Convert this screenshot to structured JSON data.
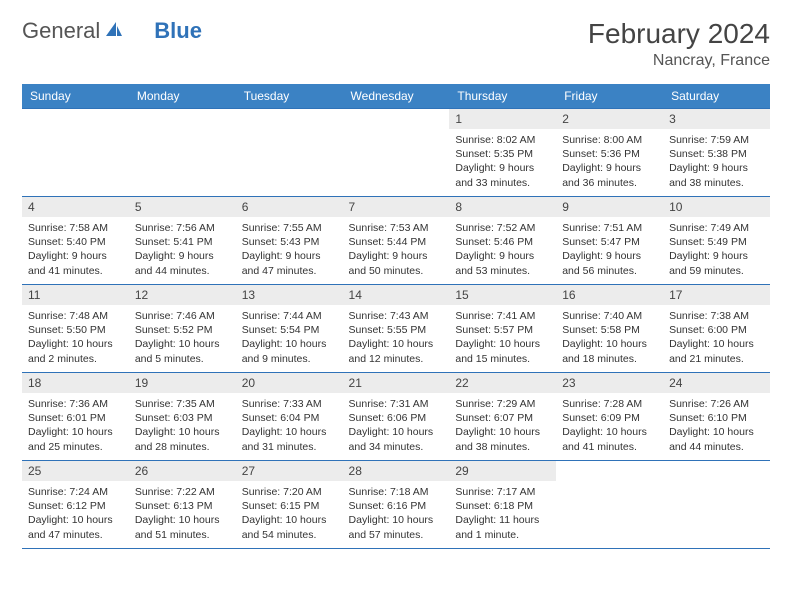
{
  "brand": {
    "name_a": "General",
    "name_b": "Blue"
  },
  "title": "February 2024",
  "location": "Nancray, France",
  "colors": {
    "header_bg": "#3b82c4",
    "border": "#2f72b8",
    "daynum_bg": "#ececec",
    "text": "#333333"
  },
  "day_headers": [
    "Sunday",
    "Monday",
    "Tuesday",
    "Wednesday",
    "Thursday",
    "Friday",
    "Saturday"
  ],
  "weeks": [
    [
      {
        "n": "",
        "sr": "",
        "ss": "",
        "dl": ""
      },
      {
        "n": "",
        "sr": "",
        "ss": "",
        "dl": ""
      },
      {
        "n": "",
        "sr": "",
        "ss": "",
        "dl": ""
      },
      {
        "n": "",
        "sr": "",
        "ss": "",
        "dl": ""
      },
      {
        "n": "1",
        "sr": "Sunrise: 8:02 AM",
        "ss": "Sunset: 5:35 PM",
        "dl": "Daylight: 9 hours and 33 minutes."
      },
      {
        "n": "2",
        "sr": "Sunrise: 8:00 AM",
        "ss": "Sunset: 5:36 PM",
        "dl": "Daylight: 9 hours and 36 minutes."
      },
      {
        "n": "3",
        "sr": "Sunrise: 7:59 AM",
        "ss": "Sunset: 5:38 PM",
        "dl": "Daylight: 9 hours and 38 minutes."
      }
    ],
    [
      {
        "n": "4",
        "sr": "Sunrise: 7:58 AM",
        "ss": "Sunset: 5:40 PM",
        "dl": "Daylight: 9 hours and 41 minutes."
      },
      {
        "n": "5",
        "sr": "Sunrise: 7:56 AM",
        "ss": "Sunset: 5:41 PM",
        "dl": "Daylight: 9 hours and 44 minutes."
      },
      {
        "n": "6",
        "sr": "Sunrise: 7:55 AM",
        "ss": "Sunset: 5:43 PM",
        "dl": "Daylight: 9 hours and 47 minutes."
      },
      {
        "n": "7",
        "sr": "Sunrise: 7:53 AM",
        "ss": "Sunset: 5:44 PM",
        "dl": "Daylight: 9 hours and 50 minutes."
      },
      {
        "n": "8",
        "sr": "Sunrise: 7:52 AM",
        "ss": "Sunset: 5:46 PM",
        "dl": "Daylight: 9 hours and 53 minutes."
      },
      {
        "n": "9",
        "sr": "Sunrise: 7:51 AM",
        "ss": "Sunset: 5:47 PM",
        "dl": "Daylight: 9 hours and 56 minutes."
      },
      {
        "n": "10",
        "sr": "Sunrise: 7:49 AM",
        "ss": "Sunset: 5:49 PM",
        "dl": "Daylight: 9 hours and 59 minutes."
      }
    ],
    [
      {
        "n": "11",
        "sr": "Sunrise: 7:48 AM",
        "ss": "Sunset: 5:50 PM",
        "dl": "Daylight: 10 hours and 2 minutes."
      },
      {
        "n": "12",
        "sr": "Sunrise: 7:46 AM",
        "ss": "Sunset: 5:52 PM",
        "dl": "Daylight: 10 hours and 5 minutes."
      },
      {
        "n": "13",
        "sr": "Sunrise: 7:44 AM",
        "ss": "Sunset: 5:54 PM",
        "dl": "Daylight: 10 hours and 9 minutes."
      },
      {
        "n": "14",
        "sr": "Sunrise: 7:43 AM",
        "ss": "Sunset: 5:55 PM",
        "dl": "Daylight: 10 hours and 12 minutes."
      },
      {
        "n": "15",
        "sr": "Sunrise: 7:41 AM",
        "ss": "Sunset: 5:57 PM",
        "dl": "Daylight: 10 hours and 15 minutes."
      },
      {
        "n": "16",
        "sr": "Sunrise: 7:40 AM",
        "ss": "Sunset: 5:58 PM",
        "dl": "Daylight: 10 hours and 18 minutes."
      },
      {
        "n": "17",
        "sr": "Sunrise: 7:38 AM",
        "ss": "Sunset: 6:00 PM",
        "dl": "Daylight: 10 hours and 21 minutes."
      }
    ],
    [
      {
        "n": "18",
        "sr": "Sunrise: 7:36 AM",
        "ss": "Sunset: 6:01 PM",
        "dl": "Daylight: 10 hours and 25 minutes."
      },
      {
        "n": "19",
        "sr": "Sunrise: 7:35 AM",
        "ss": "Sunset: 6:03 PM",
        "dl": "Daylight: 10 hours and 28 minutes."
      },
      {
        "n": "20",
        "sr": "Sunrise: 7:33 AM",
        "ss": "Sunset: 6:04 PM",
        "dl": "Daylight: 10 hours and 31 minutes."
      },
      {
        "n": "21",
        "sr": "Sunrise: 7:31 AM",
        "ss": "Sunset: 6:06 PM",
        "dl": "Daylight: 10 hours and 34 minutes."
      },
      {
        "n": "22",
        "sr": "Sunrise: 7:29 AM",
        "ss": "Sunset: 6:07 PM",
        "dl": "Daylight: 10 hours and 38 minutes."
      },
      {
        "n": "23",
        "sr": "Sunrise: 7:28 AM",
        "ss": "Sunset: 6:09 PM",
        "dl": "Daylight: 10 hours and 41 minutes."
      },
      {
        "n": "24",
        "sr": "Sunrise: 7:26 AM",
        "ss": "Sunset: 6:10 PM",
        "dl": "Daylight: 10 hours and 44 minutes."
      }
    ],
    [
      {
        "n": "25",
        "sr": "Sunrise: 7:24 AM",
        "ss": "Sunset: 6:12 PM",
        "dl": "Daylight: 10 hours and 47 minutes."
      },
      {
        "n": "26",
        "sr": "Sunrise: 7:22 AM",
        "ss": "Sunset: 6:13 PM",
        "dl": "Daylight: 10 hours and 51 minutes."
      },
      {
        "n": "27",
        "sr": "Sunrise: 7:20 AM",
        "ss": "Sunset: 6:15 PM",
        "dl": "Daylight: 10 hours and 54 minutes."
      },
      {
        "n": "28",
        "sr": "Sunrise: 7:18 AM",
        "ss": "Sunset: 6:16 PM",
        "dl": "Daylight: 10 hours and 57 minutes."
      },
      {
        "n": "29",
        "sr": "Sunrise: 7:17 AM",
        "ss": "Sunset: 6:18 PM",
        "dl": "Daylight: 11 hours and 1 minute."
      },
      {
        "n": "",
        "sr": "",
        "ss": "",
        "dl": ""
      },
      {
        "n": "",
        "sr": "",
        "ss": "",
        "dl": ""
      }
    ]
  ]
}
